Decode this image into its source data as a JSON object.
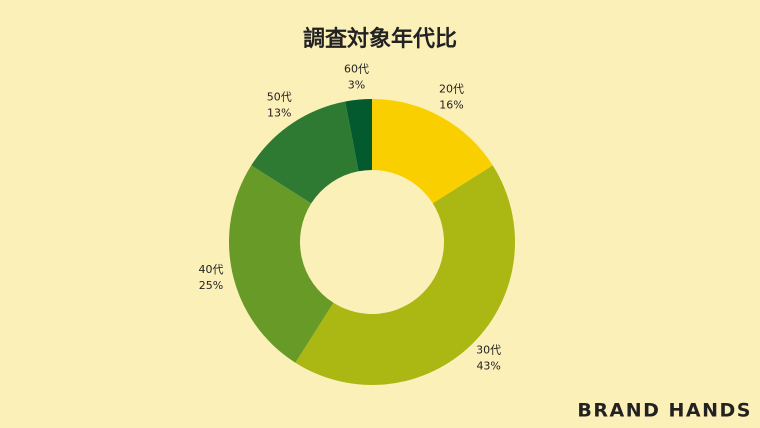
{
  "chart_data": {
    "type": "donut",
    "title": "調査対象年代比",
    "categories": [
      "20代",
      "30代",
      "40代",
      "50代",
      "60代"
    ],
    "values": [
      16,
      43,
      25,
      13,
      3
    ],
    "value_labels": [
      "16%",
      "43%",
      "25%",
      "13%",
      "3%"
    ],
    "colors": [
      "#f9cf00",
      "#abb712",
      "#689a28",
      "#2e7a32",
      "#025a2e"
    ]
  },
  "brand": "BRAND HANDS"
}
